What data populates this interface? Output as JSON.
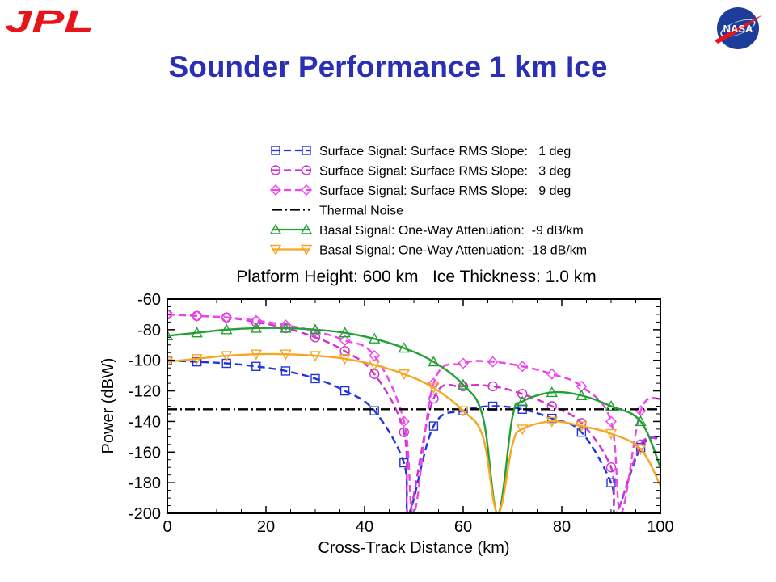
{
  "slide": {
    "title": "Sounder Performance 1 km Ice",
    "jpl_logo_text": "JPL",
    "nasa_logo_text": "NASA",
    "brand_red": "#e8141c",
    "title_color": "#2b2fb5"
  },
  "chart_data": {
    "type": "line",
    "title": "Platform Height: 600 km   Ice Thickness: 1.0 km",
    "xlabel": "Cross-Track Distance (km)",
    "ylabel": "Power (dBW)",
    "xlim": [
      0,
      100
    ],
    "ylim": [
      -200,
      -60
    ],
    "xticks": [
      0,
      20,
      40,
      60,
      80,
      100
    ],
    "yticks": [
      -60,
      -80,
      -100,
      -120,
      -140,
      -160,
      -180,
      -200
    ],
    "grid": false,
    "legend_position": "above-plot",
    "series": [
      {
        "name": "Surface Signal: Surface RMS Slope:   1 deg",
        "color": "#2233dd",
        "dash": "dashed",
        "marker": "square",
        "x": [
          0,
          6,
          12,
          18,
          24,
          30,
          36,
          42,
          48,
          49,
          54,
          60,
          66,
          72,
          78,
          84,
          90,
          91,
          96,
          100
        ],
        "y": [
          -100,
          -101,
          -102,
          -104,
          -107,
          -112,
          -120,
          -133,
          -167,
          -200,
          -143,
          -133,
          -130,
          -132,
          -138,
          -147,
          -180,
          -200,
          -157,
          -150
        ]
      },
      {
        "name": "Surface Signal: Surface RMS Slope:   3 deg",
        "color": "#cc33cc",
        "dash": "dashed",
        "marker": "circle",
        "x": [
          0,
          6,
          12,
          18,
          24,
          30,
          36,
          42,
          48,
          49,
          54,
          60,
          66,
          72,
          78,
          84,
          90,
          91,
          96,
          100
        ],
        "y": [
          -70,
          -71,
          -72,
          -75,
          -79,
          -85,
          -94,
          -109,
          -147,
          -200,
          -125,
          -117,
          -117,
          -122,
          -130,
          -141,
          -170,
          -200,
          -155,
          -152
        ]
      },
      {
        "name": "Surface Signal: Surface RMS Slope:   9 deg",
        "color": "#ee44ee",
        "dash": "dashed",
        "marker": "diamond",
        "x": [
          0,
          6,
          12,
          18,
          24,
          30,
          36,
          42,
          48,
          50,
          54,
          60,
          66,
          72,
          78,
          84,
          90,
          92,
          96,
          100
        ],
        "y": [
          -70,
          -71,
          -72,
          -74,
          -77,
          -81,
          -87,
          -97,
          -140,
          -200,
          -115,
          -102,
          -101,
          -104,
          -109,
          -117,
          -140,
          -200,
          -133,
          -125
        ]
      },
      {
        "name": "Thermal Noise",
        "color": "#000000",
        "dash": "dashdot",
        "marker": "none",
        "x": [
          0,
          100
        ],
        "y": [
          -132,
          -132
        ]
      },
      {
        "name": "Basal Signal: One-Way Attenuation:  -9 dB/km",
        "color": "#22a033",
        "dash": "solid",
        "marker": "triangle-up",
        "x": [
          0,
          6,
          12,
          18,
          24,
          30,
          36,
          42,
          48,
          54,
          60,
          64,
          67,
          70,
          72,
          78,
          84,
          90,
          96,
          100
        ],
        "y": [
          -84,
          -82,
          -80,
          -79,
          -79,
          -80,
          -82,
          -86,
          -92,
          -101,
          -116,
          -137,
          -200,
          -137,
          -127,
          -121,
          -123,
          -130,
          -140,
          -170
        ]
      },
      {
        "name": "Basal Signal: One-Way Attenuation: -18 dB/km",
        "color": "#f5a623",
        "dash": "solid",
        "marker": "triangle-down",
        "x": [
          0,
          6,
          12,
          18,
          24,
          30,
          36,
          42,
          48,
          54,
          60,
          64,
          67,
          70,
          72,
          78,
          84,
          90,
          96,
          100
        ],
        "y": [
          -101,
          -99,
          -97,
          -96,
          -96,
          -97,
          -99,
          -103,
          -109,
          -118,
          -133,
          -150,
          -200,
          -155,
          -145,
          -140,
          -143,
          -148,
          -158,
          -182
        ]
      }
    ]
  }
}
